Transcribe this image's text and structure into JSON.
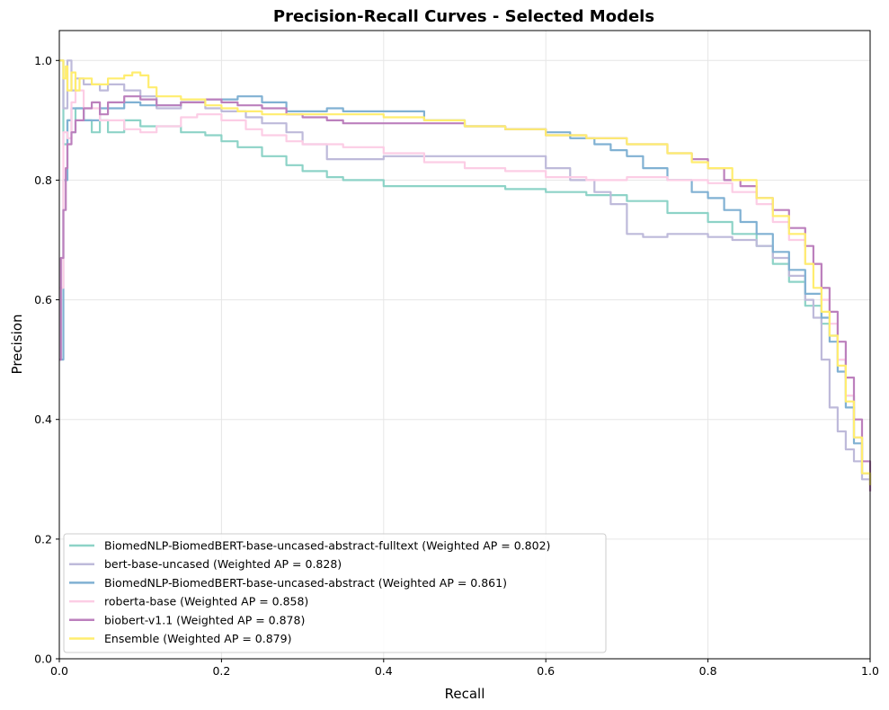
{
  "chart_data": {
    "type": "line",
    "title": "Precision-Recall Curves - Selected Models",
    "xlabel": "Recall",
    "ylabel": "Precision",
    "xlim": [
      0,
      1
    ],
    "ylim": [
      0,
      1.05
    ],
    "x_ticks": [
      "0.0",
      "0.2",
      "0.4",
      "0.6",
      "0.8",
      "1.0"
    ],
    "y_ticks": [
      "0.0",
      "0.2",
      "0.4",
      "0.6",
      "0.8",
      "1.0"
    ],
    "x_tick_values": [
      0,
      0.2,
      0.4,
      0.6,
      0.8,
      1.0
    ],
    "y_tick_values": [
      0,
      0.2,
      0.4,
      0.6,
      0.8,
      1.0
    ],
    "grid": true,
    "legend_position": "lower-left",
    "series": [
      {
        "name": "BiomedNLP-BiomedBERT-base-uncased-abstract-fulltext (Weighted AP = 0.802)",
        "color": "#8dd3c7",
        "x": [
          0.0,
          0.005,
          0.01,
          0.015,
          0.02,
          0.03,
          0.04,
          0.05,
          0.06,
          0.08,
          0.1,
          0.12,
          0.15,
          0.18,
          0.2,
          0.22,
          0.25,
          0.28,
          0.3,
          0.33,
          0.35,
          0.4,
          0.45,
          0.5,
          0.55,
          0.6,
          0.65,
          0.7,
          0.75,
          0.8,
          0.83,
          0.86,
          0.88,
          0.9,
          0.92,
          0.94,
          0.95,
          0.96,
          0.97,
          0.98,
          0.99,
          1.0
        ],
        "y": [
          1.0,
          0.86,
          0.9,
          0.88,
          0.92,
          0.9,
          0.88,
          0.9,
          0.88,
          0.9,
          0.89,
          0.89,
          0.88,
          0.875,
          0.865,
          0.855,
          0.84,
          0.825,
          0.815,
          0.805,
          0.8,
          0.79,
          0.79,
          0.79,
          0.785,
          0.78,
          0.775,
          0.765,
          0.745,
          0.73,
          0.71,
          0.69,
          0.66,
          0.63,
          0.59,
          0.56,
          0.54,
          0.5,
          0.44,
          0.37,
          0.31,
          0.29
        ]
      },
      {
        "name": "bert-base-uncased (Weighted AP = 0.828)",
        "color": "#bebada",
        "x": [
          0.0,
          0.005,
          0.01,
          0.015,
          0.02,
          0.03,
          0.05,
          0.06,
          0.08,
          0.1,
          0.12,
          0.15,
          0.18,
          0.2,
          0.23,
          0.25,
          0.28,
          0.3,
          0.33,
          0.35,
          0.4,
          0.45,
          0.5,
          0.55,
          0.6,
          0.63,
          0.66,
          0.68,
          0.7,
          0.72,
          0.75,
          0.8,
          0.83,
          0.86,
          0.88,
          0.9,
          0.92,
          0.93,
          0.94,
          0.95,
          0.96,
          0.97,
          0.98,
          0.99,
          1.0
        ],
        "y": [
          1.0,
          0.92,
          1.0,
          0.95,
          0.97,
          0.96,
          0.95,
          0.96,
          0.95,
          0.94,
          0.92,
          0.93,
          0.92,
          0.915,
          0.905,
          0.895,
          0.88,
          0.86,
          0.835,
          0.835,
          0.84,
          0.84,
          0.84,
          0.84,
          0.82,
          0.8,
          0.78,
          0.76,
          0.71,
          0.705,
          0.71,
          0.705,
          0.7,
          0.69,
          0.67,
          0.64,
          0.6,
          0.57,
          0.5,
          0.42,
          0.38,
          0.35,
          0.33,
          0.3,
          0.28
        ]
      },
      {
        "name": "BiomedNLP-BiomedBERT-base-uncased-abstract (Weighted AP = 0.861)",
        "color": "#80b1d3",
        "x": [
          0.0,
          0.005,
          0.01,
          0.015,
          0.02,
          0.03,
          0.05,
          0.08,
          0.1,
          0.12,
          0.15,
          0.18,
          0.2,
          0.22,
          0.25,
          0.28,
          0.3,
          0.33,
          0.35,
          0.4,
          0.45,
          0.5,
          0.55,
          0.6,
          0.63,
          0.66,
          0.68,
          0.7,
          0.72,
          0.75,
          0.78,
          0.8,
          0.82,
          0.84,
          0.86,
          0.88,
          0.9,
          0.92,
          0.94,
          0.95,
          0.96,
          0.97,
          0.98,
          0.99,
          1.0
        ],
        "y": [
          0.5,
          0.8,
          0.9,
          0.92,
          0.92,
          0.9,
          0.92,
          0.93,
          0.925,
          0.925,
          0.93,
          0.935,
          0.935,
          0.94,
          0.93,
          0.915,
          0.915,
          0.92,
          0.915,
          0.915,
          0.9,
          0.89,
          0.885,
          0.88,
          0.87,
          0.86,
          0.85,
          0.84,
          0.82,
          0.8,
          0.78,
          0.77,
          0.75,
          0.73,
          0.71,
          0.68,
          0.65,
          0.61,
          0.57,
          0.53,
          0.48,
          0.42,
          0.36,
          0.31,
          0.29
        ]
      },
      {
        "name": "roberta-base (Weighted AP = 0.858)",
        "color": "#fccde5",
        "x": [
          0.0,
          0.005,
          0.01,
          0.015,
          0.02,
          0.03,
          0.05,
          0.08,
          0.1,
          0.12,
          0.15,
          0.17,
          0.2,
          0.23,
          0.25,
          0.28,
          0.3,
          0.35,
          0.4,
          0.45,
          0.5,
          0.55,
          0.6,
          0.65,
          0.7,
          0.75,
          0.8,
          0.83,
          0.86,
          0.88,
          0.9,
          0.92,
          0.94,
          0.95,
          0.96,
          0.97,
          0.98,
          0.99,
          1.0
        ],
        "y": [
          0.62,
          0.88,
          0.87,
          0.93,
          0.95,
          0.92,
          0.9,
          0.885,
          0.88,
          0.89,
          0.905,
          0.91,
          0.9,
          0.885,
          0.875,
          0.865,
          0.86,
          0.855,
          0.845,
          0.83,
          0.82,
          0.815,
          0.805,
          0.8,
          0.805,
          0.8,
          0.795,
          0.78,
          0.76,
          0.73,
          0.7,
          0.66,
          0.6,
          0.56,
          0.5,
          0.44,
          0.37,
          0.31,
          0.28
        ]
      },
      {
        "name": "biobert-v1.1 (Weighted AP = 0.878)",
        "color": "#bc80bd",
        "x": [
          0.0,
          0.002,
          0.005,
          0.008,
          0.01,
          0.015,
          0.02,
          0.03,
          0.04,
          0.05,
          0.06,
          0.08,
          0.1,
          0.12,
          0.15,
          0.18,
          0.2,
          0.22,
          0.25,
          0.28,
          0.3,
          0.33,
          0.35,
          0.4,
          0.45,
          0.5,
          0.55,
          0.6,
          0.65,
          0.7,
          0.75,
          0.78,
          0.8,
          0.82,
          0.84,
          0.86,
          0.88,
          0.9,
          0.92,
          0.93,
          0.94,
          0.95,
          0.96,
          0.97,
          0.98,
          0.99,
          1.0
        ],
        "y": [
          0.5,
          0.67,
          0.75,
          0.82,
          0.86,
          0.88,
          0.9,
          0.92,
          0.93,
          0.91,
          0.93,
          0.94,
          0.935,
          0.925,
          0.93,
          0.935,
          0.93,
          0.925,
          0.92,
          0.91,
          0.905,
          0.9,
          0.895,
          0.895,
          0.895,
          0.89,
          0.885,
          0.875,
          0.87,
          0.86,
          0.845,
          0.835,
          0.82,
          0.8,
          0.79,
          0.77,
          0.75,
          0.72,
          0.69,
          0.66,
          0.62,
          0.58,
          0.53,
          0.47,
          0.4,
          0.33,
          0.28
        ]
      },
      {
        "name": "Ensemble (Weighted AP = 0.879)",
        "color": "#ffed6f",
        "x": [
          0.0,
          0.005,
          0.008,
          0.01,
          0.015,
          0.02,
          0.025,
          0.03,
          0.04,
          0.06,
          0.08,
          0.09,
          0.1,
          0.11,
          0.12,
          0.15,
          0.18,
          0.2,
          0.22,
          0.25,
          0.28,
          0.3,
          0.35,
          0.4,
          0.45,
          0.5,
          0.55,
          0.6,
          0.65,
          0.7,
          0.75,
          0.78,
          0.8,
          0.83,
          0.86,
          0.88,
          0.9,
          0.92,
          0.93,
          0.94,
          0.95,
          0.96,
          0.97,
          0.98,
          0.99,
          1.0
        ],
        "y": [
          1.0,
          0.97,
          0.99,
          0.95,
          0.98,
          0.95,
          0.97,
          0.97,
          0.96,
          0.97,
          0.975,
          0.98,
          0.975,
          0.955,
          0.94,
          0.935,
          0.925,
          0.92,
          0.915,
          0.91,
          0.91,
          0.91,
          0.91,
          0.905,
          0.9,
          0.89,
          0.885,
          0.875,
          0.87,
          0.86,
          0.845,
          0.83,
          0.82,
          0.8,
          0.77,
          0.74,
          0.71,
          0.66,
          0.62,
          0.58,
          0.54,
          0.49,
          0.43,
          0.37,
          0.31,
          0.29
        ]
      }
    ]
  }
}
